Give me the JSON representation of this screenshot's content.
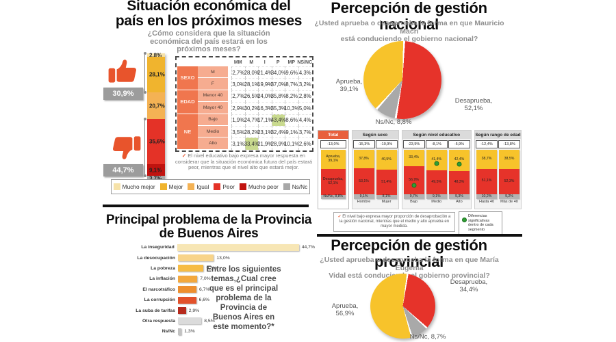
{
  "colors": {
    "accent": "#e8542c",
    "yellow": "#f7c32b",
    "red": "#e6332a",
    "gray": "#a9a9a9",
    "gray2": "#b3b3b3",
    "mucho_mejor": "#f6e2a9",
    "mejor": "#f0b42e",
    "igual": "#f4b254",
    "peor": "#e43227",
    "mucho_peor": "#c1130f",
    "nsnc": "#a8a8a8"
  },
  "economic": {
    "title": "Situación económica del\npaís en los próximos meses",
    "subtitle": "¿Cómo considera que la situación\neconómica del país estará en los\npróximos meses?",
    "approve_total": "30,9%",
    "disapprove_total": "44,7%",
    "stacked_bar": [
      {
        "key": "mucho_mejor",
        "label": "2,8%",
        "value": 2.8
      },
      {
        "key": "mejor",
        "label": "28,1%",
        "value": 28.1
      },
      {
        "key": "igual",
        "label": "20,7%",
        "value": 20.7
      },
      {
        "key": "peor",
        "label": "35,6%",
        "value": 35.6
      },
      {
        "key": "mucho_peor",
        "label": "9,1%",
        "value": 9.1
      },
      {
        "key": "nsnc",
        "label": "3,7%",
        "value": 3.7
      }
    ],
    "table": {
      "col_headers": [
        "MM",
        "M",
        "I",
        "P",
        "MP",
        "NS/NC"
      ],
      "groups": [
        {
          "name": "SEXO",
          "rows": [
            {
              "label": "M",
              "values": [
                "2,7%",
                "28,0%",
                "21,4%",
                "34,0%",
                "9,6%",
                "4,3%"
              ],
              "highlight": -1
            },
            {
              "label": "F",
              "values": [
                "3,0%",
                "28,1%",
                "19,9%",
                "37,0%",
                "8,7%",
                "3,2%"
              ],
              "highlight": -1
            }
          ]
        },
        {
          "name": "EDAD",
          "rows": [
            {
              "label": "Menor 40",
              "values": [
                "2,7%",
                "26,5%",
                "24,0%",
                "35,8%",
                "8,2%",
                "2,8%"
              ],
              "highlight": -1
            },
            {
              "label": "Mayor 40",
              "values": [
                "2,9%",
                "30,2%",
                "16,3%",
                "35,3%",
                "10,3%",
                "5,0%"
              ],
              "highlight": -1
            }
          ]
        },
        {
          "name": "NE",
          "rows": [
            {
              "label": "Bajo",
              "values": [
                "1,9%",
                "24,7%",
                "17,1%",
                "43,4%",
                "8,6%",
                "4,4%"
              ],
              "highlight": 3
            },
            {
              "label": "Medio",
              "values": [
                "3,5%",
                "28,2%",
                "23,1%",
                "32,4%",
                "9,1%",
                "3,7%"
              ],
              "highlight": -1
            },
            {
              "label": "Alto",
              "values": [
                "3,1%",
                "33,4%",
                "21,9%",
                "28,9%",
                "10,1%",
                "2,6%"
              ],
              "highlight": 1
            }
          ]
        }
      ]
    },
    "check": "✓ ",
    "note": "El nivel educativo bajo expresa mayor respuesta en considerar que la situación económica futura del país estará peor, mientras que el nivel alto que estará mejor.",
    "legend": [
      {
        "key": "mucho_mejor",
        "label": "Mucho mejor"
      },
      {
        "key": "mejor",
        "label": "Mejor"
      },
      {
        "key": "igual",
        "label": "Igual"
      },
      {
        "key": "peor",
        "label": "Peor"
      },
      {
        "key": "mucho_peor",
        "label": "Mucho peor"
      },
      {
        "key": "nsnc",
        "label": "Ns/Nc"
      }
    ]
  },
  "national": {
    "title": "Percepción de gestión nacional",
    "subtitle": "¿Usted aprueba o desaprueba la forma en que Mauricio Macri\nestá conduciendo el gobierno nacional?",
    "pie": {
      "start": 4,
      "slices": [
        {
          "name": "Desaprueba",
          "k": "red",
          "value": 52.1,
          "label": "Desaprueba,\n52,1%"
        },
        {
          "name": "Ns/Nc",
          "k": "gray",
          "value": 8.8,
          "label": "Ns/Nc, 8,8%"
        },
        {
          "name": "Aprueba",
          "k": "yellow",
          "value": 39.1,
          "label": "Aprueba,\n39,1%"
        }
      ]
    },
    "panels": [
      {
        "header": "Total",
        "accent": true,
        "bars": [
          {
            "x_label": "",
            "net": "-13,0%",
            "segments": [
              {
                "k": "a",
                "text": "Aprueba,\n39,1%",
                "value": 39.1
              },
              {
                "k": "d",
                "text": "Desaprueba,\n52,1%",
                "value": 52.1
              },
              {
                "k": "n",
                "text": "Ns/Nc, 8,8%",
                "value": 8.8
              }
            ]
          }
        ]
      },
      {
        "header": "Según sexo",
        "bars": [
          {
            "x_label": "Hombre",
            "net": "-15,3%",
            "segments": [
              {
                "k": "a",
                "text": "37,8%",
                "value": 37.8
              },
              {
                "k": "d",
                "text": "53,1%",
                "value": 53.1
              },
              {
                "k": "n",
                "text": "9,1%",
                "value": 9.1
              }
            ]
          },
          {
            "x_label": "Mujer",
            "net": "-10,9%",
            "segments": [
              {
                "k": "a",
                "text": "40,5%",
                "value": 40.5
              },
              {
                "k": "d",
                "text": "51,4%",
                "value": 51.4
              },
              {
                "k": "n",
                "text": "8,1%",
                "value": 8.1
              }
            ]
          }
        ]
      },
      {
        "header": "Según nivel educativo",
        "bars": [
          {
            "x_label": "Bajo",
            "net": "-23,5%",
            "segments": [
              {
                "k": "a",
                "text": "33,4%",
                "value": 33.4
              },
              {
                "k": "d",
                "text": "56,9%",
                "value": 56.9,
                "dot": true
              },
              {
                "k": "n",
                "text": "9,7%",
                "value": 9.7
              }
            ]
          },
          {
            "x_label": "Medio",
            "net": "-8,1%",
            "segments": [
              {
                "k": "a",
                "text": "41,4%",
                "value": 41.4,
                "dot": true
              },
              {
                "k": "d",
                "text": "49,5%",
                "value": 49.5
              },
              {
                "k": "n",
                "text": "9,1%",
                "value": 9.1
              }
            ]
          },
          {
            "x_label": "Alto",
            "net": "-5,9%",
            "segments": [
              {
                "k": "a",
                "text": "42,4%",
                "value": 42.4,
                "dot": true
              },
              {
                "k": "d",
                "text": "48,3%",
                "value": 48.3
              },
              {
                "k": "n",
                "text": "9,3%",
                "value": 9.3
              }
            ]
          }
        ]
      },
      {
        "header": "Según rango de edad",
        "bars": [
          {
            "x_label": "Hasta 40",
            "net": "-12,4%",
            "segments": [
              {
                "k": "a",
                "text": "38,7%",
                "value": 38.7
              },
              {
                "k": "d",
                "text": "51,1%",
                "value": 51.1
              },
              {
                "k": "n",
                "text": "10,2%",
                "value": 10.2
              }
            ]
          },
          {
            "x_label": "Más de 40",
            "net": "-13,8%",
            "segments": [
              {
                "k": "a",
                "text": "38,5%",
                "value": 38.5
              },
              {
                "k": "d",
                "text": "52,3%",
                "value": 52.3
              },
              {
                "k": "n",
                "text": "9,2%",
                "value": 9.2
              }
            ]
          }
        ]
      }
    ],
    "check": "✓ ",
    "note": "El nivel bajo expresa mayor proporción de desaprobación a la gestión nacional, mientras que el medio y alto aprueba en mayor medida.",
    "sig_legend": "Diferencias significativas\ndentro de cada segmento"
  },
  "problems": {
    "title": "Principal problema de la Provincia\nde Buenos Aires",
    "question": "Entre los siguientes\ntemas,¿Cual cree\nque es  el principal\nproblema de la\nProvincia de\nBuenos Aires en\neste momento?*",
    "bars": [
      {
        "label": "La inseguridad",
        "value": 44.7,
        "value_label": "44,7%",
        "color": "#f7e6b5"
      },
      {
        "label": "La desocupación",
        "value": 13.0,
        "value_label": "13,0%",
        "color": "#f8d489"
      },
      {
        "label": "La pobreza",
        "value": 9.3,
        "value_label": "9,3%",
        "color": "#f6bc45"
      },
      {
        "label": "La inflación",
        "value": 7.0,
        "value_label": "7,0%",
        "color": "#f3a83e"
      },
      {
        "label": "El narcotráfico",
        "value": 6.7,
        "value_label": "6,7%",
        "color": "#ee8f2f"
      },
      {
        "label": "La corrupción",
        "value": 6.6,
        "value_label": "6,6%",
        "color": "#e2512b"
      },
      {
        "label": "La suba de tarifas",
        "value": 2.9,
        "value_label": "2,9%",
        "color": "#b62a1d"
      },
      {
        "label": "Otra respuesta",
        "value": 8.5,
        "value_label": "8,5%",
        "color": "#dbdbdb"
      },
      {
        "label": "Ns/Nc",
        "value": 1.3,
        "value_label": "1,3%",
        "color": "#c2c2c2"
      }
    ]
  },
  "provincial": {
    "title": "Percepción de gestión provincial",
    "subtitle": "¿Usted aprueba o desaprueba la forma en que María Eugenia\nVidal está conduciendo el gobierno provincial?",
    "pie": {
      "start": 10,
      "slices": [
        {
          "name": "Desaprueba",
          "k": "red",
          "value": 34.4,
          "label": "Desaprueba,\n34,4%"
        },
        {
          "name": "Ns/Nc",
          "k": "gray",
          "value": 8.7,
          "label": "Ns/Nc, 8,7%"
        },
        {
          "name": "Aprueba",
          "k": "yellow",
          "value": 56.9,
          "label": "Aprueba,\n56,9%"
        }
      ]
    }
  },
  "chart_data": [
    {
      "id": "economic-outlook-stacked-bar",
      "type": "bar",
      "stacked": true,
      "title": "Situación económica del país en los próximos meses",
      "question": "¿Cómo considera que la situación económica del país estará en los próximos meses?",
      "categories": [
        "Total"
      ],
      "series": [
        {
          "name": "Mucho mejor",
          "values": [
            2.8
          ]
        },
        {
          "name": "Mejor",
          "values": [
            28.1
          ]
        },
        {
          "name": "Igual",
          "values": [
            20.7
          ]
        },
        {
          "name": "Peor",
          "values": [
            35.6
          ]
        },
        {
          "name": "Mucho peor",
          "values": [
            9.1
          ]
        },
        {
          "name": "Ns/Nc",
          "values": [
            3.7
          ]
        }
      ],
      "annotations": {
        "mejor_total": 30.9,
        "peor_total": 44.7
      }
    },
    {
      "id": "economic-outlook-by-segment-table",
      "type": "table",
      "columns": [
        "MM",
        "M",
        "I",
        "P",
        "MP",
        "NS/NC"
      ],
      "rows": [
        {
          "group": "SEXO",
          "label": "M",
          "values": [
            2.7,
            28.0,
            21.4,
            34.0,
            9.6,
            4.3
          ]
        },
        {
          "group": "SEXO",
          "label": "F",
          "values": [
            3.0,
            28.1,
            19.9,
            37.0,
            8.7,
            3.2
          ]
        },
        {
          "group": "EDAD",
          "label": "Menor 40",
          "values": [
            2.7,
            26.5,
            24.0,
            35.8,
            8.2,
            2.8
          ]
        },
        {
          "group": "EDAD",
          "label": "Mayor 40",
          "values": [
            2.9,
            30.2,
            16.3,
            35.3,
            10.3,
            5.0
          ]
        },
        {
          "group": "NE",
          "label": "Bajo",
          "values": [
            1.9,
            24.7,
            17.1,
            43.4,
            8.6,
            4.4
          ]
        },
        {
          "group": "NE",
          "label": "Medio",
          "values": [
            3.5,
            28.2,
            23.1,
            32.4,
            9.1,
            3.7
          ]
        },
        {
          "group": "NE",
          "label": "Alto",
          "values": [
            3.1,
            33.4,
            21.9,
            28.9,
            10.1,
            2.6
          ]
        }
      ]
    },
    {
      "id": "national-approval-pie",
      "type": "pie",
      "title": "Percepción de gestión nacional",
      "labels": [
        "Aprueba",
        "Desaprueba",
        "Ns/Nc"
      ],
      "values": [
        39.1,
        52.1,
        8.8
      ]
    },
    {
      "id": "national-approval-by-segment-bars",
      "type": "bar",
      "stacked": true,
      "groups": [
        "Total",
        "Según sexo",
        "Según nivel educativo",
        "Según rango de edad"
      ],
      "categories": [
        "Total",
        "Hombre",
        "Mujer",
        "Bajo",
        "Medio",
        "Alto",
        "Hasta 40",
        "Más de 40"
      ],
      "series": [
        {
          "name": "Aprueba",
          "values": [
            39.1,
            37.8,
            40.5,
            33.4,
            41.4,
            42.4,
            38.7,
            38.5
          ]
        },
        {
          "name": "Desaprueba",
          "values": [
            52.1,
            53.1,
            51.4,
            56.9,
            49.5,
            48.3,
            51.1,
            52.3
          ]
        },
        {
          "name": "Ns/Nc",
          "values": [
            8.8,
            9.1,
            8.1,
            9.7,
            9.1,
            9.3,
            10.2,
            9.2
          ]
        }
      ],
      "net_difference": [
        -13.0,
        -15.3,
        -10.9,
        -23.5,
        -8.1,
        -5.9,
        -12.4,
        -13.8
      ]
    },
    {
      "id": "provincial-problems-hbar",
      "type": "bar",
      "orientation": "horizontal",
      "title": "Principal problema de la Provincia de Buenos Aires",
      "categories": [
        "La inseguridad",
        "La desocupación",
        "La pobreza",
        "La inflación",
        "El narcotráfico",
        "La corrupción",
        "La suba de tarifas",
        "Otra respuesta",
        "Ns/Nc"
      ],
      "values": [
        44.7,
        13.0,
        9.3,
        7.0,
        6.7,
        6.6,
        2.9,
        8.5,
        1.3
      ]
    },
    {
      "id": "provincial-approval-pie",
      "type": "pie",
      "title": "Percepción de gestión provincial",
      "labels": [
        "Aprueba",
        "Desaprueba",
        "Ns/Nc"
      ],
      "values": [
        56.9,
        34.4,
        8.7
      ]
    }
  ]
}
